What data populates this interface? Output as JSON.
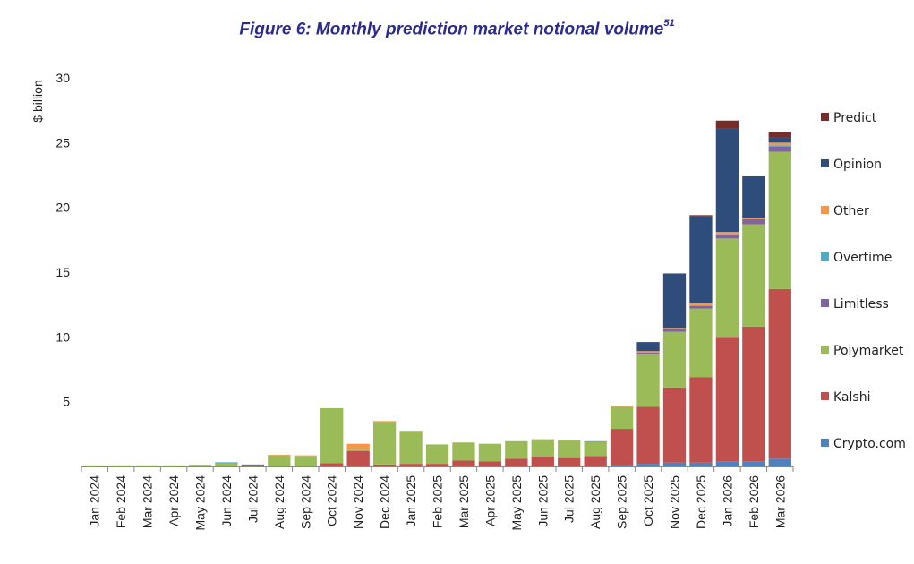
{
  "figure": {
    "title": "Figure 6: Monthly prediction market notional volume",
    "footnote": "51"
  },
  "chart_data": {
    "type": "bar",
    "stacked": true,
    "title": "Figure 6: Monthly prediction market notional volume",
    "xlabel": "",
    "ylabel": "$ billion",
    "ylim": [
      0,
      30
    ],
    "yticks": [
      5,
      10,
      15,
      20,
      25,
      30
    ],
    "grid": false,
    "legend_position": "right",
    "categories": [
      "Jan 2024",
      "Feb 2024",
      "Mar 2024",
      "Apr 2024",
      "May 2024",
      "Jun 2024",
      "Jul 2024",
      "Aug 2024",
      "Sep 2024",
      "Oct 2024",
      "Nov 2024",
      "Dec 2024",
      "Jan 2025",
      "Feb 2025",
      "Mar 2025",
      "Apr 2025",
      "May 2025",
      "Jun 2025",
      "Jul 2025",
      "Aug 2025",
      "Sep 2025",
      "Oct 2025",
      "Nov 2025",
      "Dec 2025",
      "Jan 2026",
      "Feb 2026",
      "Mar 2026"
    ],
    "series": [
      {
        "name": "Crypto.com",
        "color": "#4f81bd",
        "values": [
          0,
          0,
          0,
          0,
          0,
          0,
          0,
          0,
          0,
          0,
          0,
          0,
          0,
          0,
          0,
          0,
          0,
          0,
          0,
          0,
          0.1,
          0.2,
          0.3,
          0.3,
          0.4,
          0.4,
          0.6
        ]
      },
      {
        "name": "Kalshi",
        "color": "#c0504d",
        "values": [
          0,
          0,
          0,
          0,
          0,
          0,
          0,
          0,
          0,
          0.25,
          1.2,
          0.15,
          0.2,
          0.2,
          0.45,
          0.4,
          0.6,
          0.75,
          0.65,
          0.8,
          2.8,
          4.4,
          5.8,
          6.6,
          9.6,
          10.4,
          13.1
        ]
      },
      {
        "name": "Polymarket",
        "color": "#9bbb59",
        "values": [
          0.08,
          0.08,
          0.08,
          0.08,
          0.1,
          0.25,
          0.05,
          0.85,
          0.8,
          4.25,
          0.1,
          3.3,
          2.55,
          1.5,
          1.4,
          1.35,
          1.35,
          1.35,
          1.35,
          1.1,
          1.7,
          4.1,
          4.3,
          5.3,
          7.6,
          7.9,
          10.6
        ]
      },
      {
        "name": "Limitless",
        "color": "#8064a2",
        "values": [
          0,
          0,
          0,
          0,
          0.02,
          0.02,
          0.1,
          0,
          0,
          0,
          0,
          0,
          0,
          0,
          0,
          0,
          0,
          0,
          0,
          0,
          0,
          0.1,
          0.2,
          0.2,
          0.3,
          0.4,
          0.4
        ]
      },
      {
        "name": "Overtime",
        "color": "#4bacc6",
        "values": [
          0,
          0,
          0,
          0,
          0,
          0.05,
          0,
          0,
          0,
          0,
          0,
          0,
          0,
          0,
          0,
          0,
          0,
          0,
          0,
          0.05,
          0,
          0,
          0,
          0,
          0,
          0,
          0.1
        ]
      },
      {
        "name": "Other",
        "color": "#f79646",
        "values": [
          0,
          0,
          0,
          0,
          0,
          0,
          0,
          0.05,
          0.05,
          0,
          0.45,
          0.05,
          0,
          0,
          0,
          0,
          0,
          0,
          0,
          0,
          0.05,
          0.1,
          0.1,
          0.2,
          0.2,
          0.1,
          0.2
        ]
      },
      {
        "name": "Opinion",
        "color": "#2e4d7b",
        "values": [
          0,
          0,
          0,
          0,
          0,
          0,
          0,
          0,
          0,
          0,
          0,
          0,
          0,
          0,
          0,
          0,
          0,
          0,
          0,
          0,
          0,
          0.7,
          4.2,
          6.7,
          8.0,
          3.2,
          0.4
        ]
      },
      {
        "name": "Predict",
        "color": "#772c2a",
        "values": [
          0,
          0,
          0,
          0,
          0,
          0,
          0,
          0,
          0,
          0,
          0,
          0,
          0,
          0,
          0,
          0,
          0,
          0,
          0,
          0,
          0,
          0,
          0,
          0.1,
          0.6,
          0,
          0.4
        ]
      }
    ]
  }
}
